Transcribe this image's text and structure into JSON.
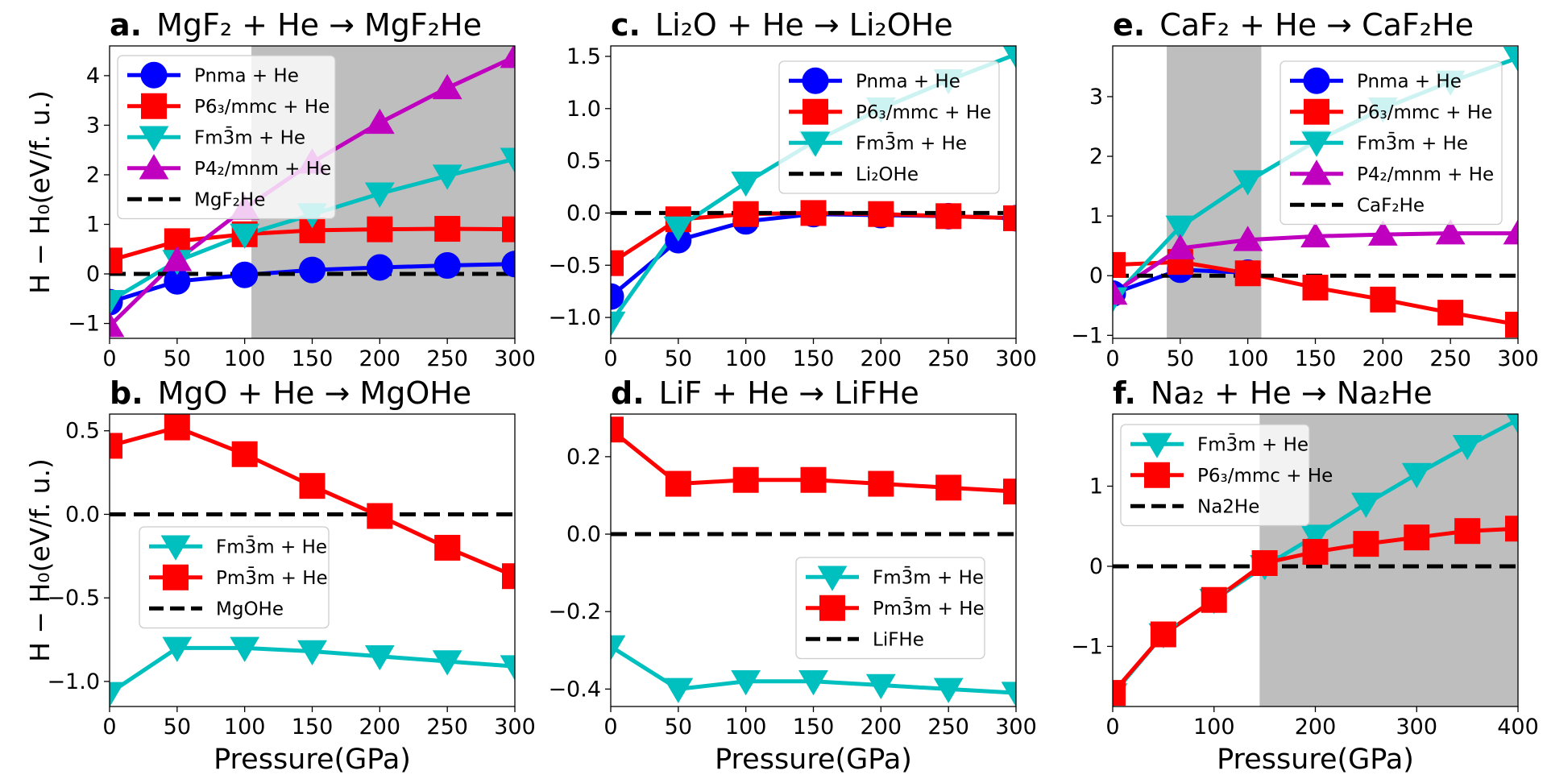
{
  "figure": {
    "ylabel": "H − H₀(eV/f. u.)",
    "xlabel": "Pressure(GPa)"
  },
  "chart_data": [
    {
      "id": "a",
      "type": "line",
      "panel_letter": "a.",
      "title": "MgF₂ + He → MgF₂He",
      "xlim": [
        0,
        300
      ],
      "ylim": [
        -1.3,
        4.6
      ],
      "xticks": [
        0,
        50,
        100,
        150,
        200,
        250,
        300
      ],
      "yticks": [
        -1,
        0,
        1,
        2,
        3,
        4
      ],
      "shade": [
        105,
        300
      ],
      "ylabel": "H − H₀(eV/f. u.)",
      "xlabel": "",
      "legend": "upper-left",
      "series": [
        {
          "name": "Pnma + He",
          "color": "#0000ff",
          "marker": "circle",
          "x": [
            0,
            50,
            100,
            150,
            200,
            250,
            300
          ],
          "y": [
            -0.57,
            -0.15,
            -0.02,
            0.08,
            0.13,
            0.17,
            0.2
          ]
        },
        {
          "name": "P6₃/mmc + He",
          "color": "#ff0000",
          "marker": "square",
          "x": [
            0,
            50,
            100,
            150,
            200,
            250,
            300
          ],
          "y": [
            0.27,
            0.66,
            0.8,
            0.88,
            0.9,
            0.91,
            0.9
          ]
        },
        {
          "name": "Fm3̄m + He",
          "color": "#00bfbf",
          "marker": "tri-down",
          "x": [
            0,
            50,
            100,
            150,
            200,
            250,
            300
          ],
          "y": [
            -0.55,
            0.26,
            0.79,
            1.2,
            1.62,
            1.98,
            2.32
          ]
        },
        {
          "name": "P4₂/mnm + He",
          "color": "#bf00bf",
          "marker": "tri-up",
          "x": [
            0,
            50,
            100,
            150,
            200,
            250,
            300
          ],
          "y": [
            -1.05,
            0.28,
            1.32,
            2.25,
            3.05,
            3.75,
            4.38
          ]
        },
        {
          "name": "MgF₂He",
          "color": "#000000",
          "marker": "dashed",
          "x": [
            0,
            300
          ],
          "y": [
            0,
            0
          ]
        }
      ]
    },
    {
      "id": "c",
      "type": "line",
      "panel_letter": "c.",
      "title": "Li₂O + He → Li₂OHe",
      "xlim": [
        0,
        300
      ],
      "ylim": [
        -1.2,
        1.6
      ],
      "xticks": [
        0,
        50,
        100,
        150,
        200,
        250,
        300
      ],
      "yticks": [
        -1.0,
        -0.5,
        0.0,
        0.5,
        1.0,
        1.5
      ],
      "yticklabels": [
        "−1.0",
        "−0.5",
        "0.0",
        "0.5",
        "1.0",
        "1.5"
      ],
      "legend": "upper-right",
      "series": [
        {
          "name": "Pnma + He",
          "color": "#0000ff",
          "marker": "circle",
          "x": [
            0,
            50,
            100,
            150,
            200,
            250,
            300
          ],
          "y": [
            -0.8,
            -0.26,
            -0.08,
            -0.01,
            -0.02,
            -0.03,
            -0.05
          ]
        },
        {
          "name": "P6₃/mmc + He",
          "color": "#ff0000",
          "marker": "square",
          "x": [
            0,
            50,
            100,
            150,
            200,
            250,
            300
          ],
          "y": [
            -0.48,
            -0.06,
            -0.01,
            0.0,
            -0.01,
            -0.03,
            -0.05
          ]
        },
        {
          "name": "Fm3̄m + He",
          "color": "#00bfbf",
          "marker": "tri-down",
          "x": [
            0,
            50,
            100,
            150,
            200,
            250,
            300
          ],
          "y": [
            -1.05,
            -0.14,
            0.29,
            0.68,
            1.0,
            1.27,
            1.52
          ]
        },
        {
          "name": "Li₂OHe",
          "color": "#000000",
          "marker": "dashed",
          "x": [
            0,
            300
          ],
          "y": [
            0,
            0
          ]
        }
      ]
    },
    {
      "id": "e",
      "type": "line",
      "panel_letter": "e.",
      "title": "CaF₂ + He → CaF₂He",
      "xlim": [
        0,
        300
      ],
      "ylim": [
        -1.05,
        3.85
      ],
      "xticks": [
        0,
        50,
        100,
        150,
        200,
        250,
        300
      ],
      "yticks": [
        -1,
        0,
        1,
        2,
        3
      ],
      "shade": [
        40,
        110
      ],
      "legend": "upper-right",
      "series": [
        {
          "name": "Pnma + He",
          "color": "#0000ff",
          "marker": "circle",
          "x": [
            0,
            50,
            100
          ],
          "y": [
            -0.3,
            0.1,
            0.05
          ]
        },
        {
          "name": "P6₃/mmc + He",
          "color": "#ff0000",
          "marker": "square",
          "x": [
            0,
            50,
            100,
            150,
            200,
            250,
            300
          ],
          "y": [
            0.18,
            0.23,
            0.04,
            -0.2,
            -0.4,
            -0.62,
            -0.82
          ]
        },
        {
          "name": "Fm3̄m + He",
          "color": "#00bfbf",
          "marker": "tri-down",
          "x": [
            0,
            50,
            100,
            150,
            200,
            250,
            300
          ],
          "y": [
            -0.38,
            0.82,
            1.58,
            2.25,
            2.8,
            3.25,
            3.65
          ]
        },
        {
          "name": "P4₂/mnm + He",
          "color": "#bf00bf",
          "marker": "tri-up",
          "x": [
            0,
            50,
            100,
            150,
            200,
            250,
            300
          ],
          "y": [
            -0.3,
            0.46,
            0.6,
            0.66,
            0.69,
            0.71,
            0.71
          ]
        },
        {
          "name": "CaF₂He",
          "color": "#000000",
          "marker": "dashed",
          "x": [
            0,
            300
          ],
          "y": [
            0,
            0
          ]
        }
      ]
    },
    {
      "id": "b",
      "type": "line",
      "panel_letter": "b.",
      "title": "MgO + He → MgOHe",
      "xlim": [
        0,
        300
      ],
      "ylim": [
        -1.15,
        0.6
      ],
      "xticks": [
        0,
        50,
        100,
        150,
        200,
        250,
        300
      ],
      "yticks": [
        -1.0,
        -0.5,
        0.0,
        0.5
      ],
      "yticklabels": [
        "−1.0",
        "−0.5",
        "0.0",
        "0.5"
      ],
      "ylabel": "H − H₀(eV/f. u.)",
      "xlabel": "Pressure(GPa)",
      "legend": "center-left",
      "series": [
        {
          "name": "Fm3̄m + He",
          "color": "#00bfbf",
          "marker": "tri-down",
          "x": [
            0,
            50,
            100,
            150,
            200,
            250,
            300
          ],
          "y": [
            -1.07,
            -0.8,
            -0.8,
            -0.82,
            -0.85,
            -0.88,
            -0.91
          ]
        },
        {
          "name": "Pm3̄m + He",
          "color": "#ff0000",
          "marker": "square",
          "x": [
            0,
            50,
            100,
            150,
            200,
            250,
            300
          ],
          "y": [
            0.41,
            0.52,
            0.36,
            0.17,
            -0.01,
            -0.2,
            -0.37
          ]
        },
        {
          "name": "MgOHe",
          "color": "#000000",
          "marker": "dashed",
          "x": [
            0,
            300
          ],
          "y": [
            0,
            0
          ]
        }
      ]
    },
    {
      "id": "d",
      "type": "line",
      "panel_letter": "d.",
      "title": "LiF + He → LiFHe",
      "xlim": [
        0,
        300
      ],
      "ylim": [
        -0.445,
        0.31
      ],
      "xticks": [
        0,
        50,
        100,
        150,
        200,
        250,
        300
      ],
      "yticks": [
        -0.4,
        -0.2,
        0.0,
        0.2
      ],
      "yticklabels": [
        "−0.4",
        "−0.2",
        "0.0",
        "0.2"
      ],
      "xlabel": "Pressure(GPa)",
      "legend": "lower-right",
      "series": [
        {
          "name": "Fm3̄m + He",
          "color": "#00bfbf",
          "marker": "tri-down",
          "x": [
            0,
            50,
            100,
            150,
            200,
            250,
            300
          ],
          "y": [
            -0.29,
            -0.4,
            -0.38,
            -0.38,
            -0.39,
            -0.4,
            -0.41
          ]
        },
        {
          "name": "Pm3̄m + He",
          "color": "#ff0000",
          "marker": "square",
          "x": [
            0,
            50,
            100,
            150,
            200,
            250,
            300
          ],
          "y": [
            0.27,
            0.13,
            0.14,
            0.14,
            0.13,
            0.12,
            0.11
          ]
        },
        {
          "name": "LiFHe",
          "color": "#000000",
          "marker": "dashed",
          "x": [
            0,
            300
          ],
          "y": [
            0,
            0
          ]
        }
      ]
    },
    {
      "id": "f",
      "type": "line",
      "panel_letter": "f.",
      "title": "Na₂ + He → Na₂He",
      "xlim": [
        0,
        400
      ],
      "ylim": [
        -1.75,
        1.9
      ],
      "xticks": [
        0,
        100,
        200,
        300,
        400
      ],
      "yticks": [
        -1,
        0,
        1
      ],
      "shade": [
        145,
        400
      ],
      "xlabel": "Pressure(GPa)",
      "legend": "upper-left",
      "series": [
        {
          "name": "Fm3̄m + He",
          "color": "#00bfbf",
          "marker": "tri-down",
          "x": [
            0,
            50,
            100,
            150,
            200,
            250,
            300,
            350,
            400
          ],
          "y": [
            -1.6,
            -0.85,
            -0.42,
            0.0,
            0.38,
            0.78,
            1.15,
            1.5,
            1.83
          ]
        },
        {
          "name": "P6₃/mmc + He",
          "color": "#ff0000",
          "marker": "square",
          "x": [
            0,
            50,
            100,
            150,
            200,
            250,
            300,
            350,
            400
          ],
          "y": [
            -1.58,
            -0.85,
            -0.42,
            0.04,
            0.18,
            0.28,
            0.36,
            0.44,
            0.47
          ]
        },
        {
          "name": "Na2He",
          "color": "#000000",
          "marker": "dashed",
          "x": [
            0,
            400
          ],
          "y": [
            0,
            0
          ]
        }
      ]
    }
  ]
}
